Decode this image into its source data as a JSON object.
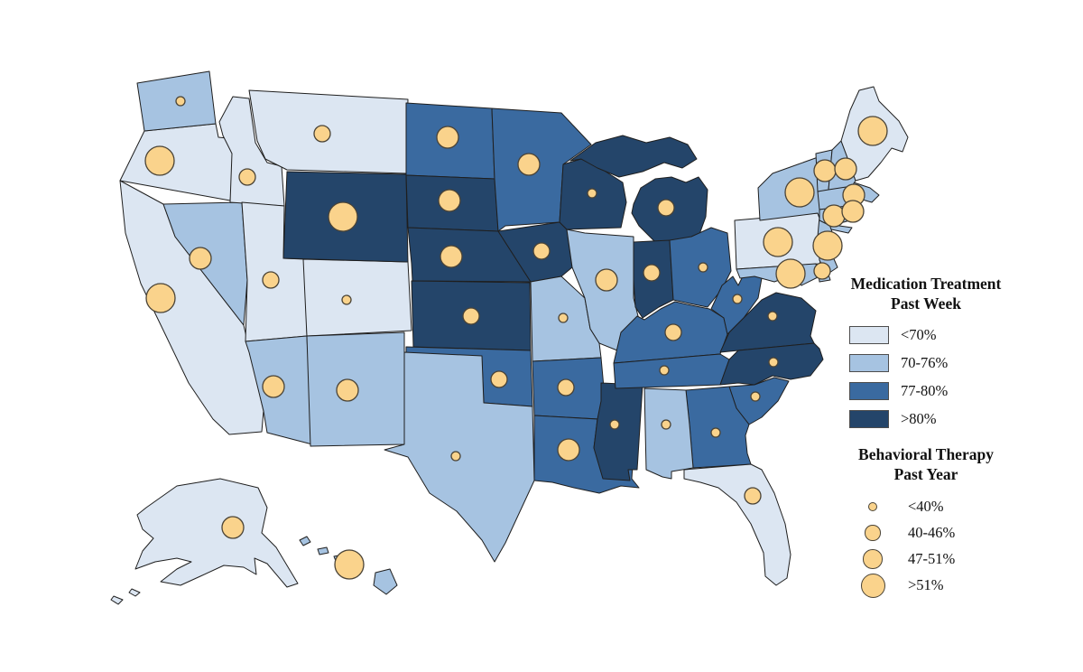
{
  "map_style": {
    "background": "#ffffff",
    "state_border": "#1f1f1f"
  },
  "circle_style": {
    "fill": "#FAD38C",
    "stroke": "#4a4336"
  },
  "fill_legend": {
    "title_line1": "Medication Treatment",
    "title_line2": "Past Week",
    "classes": [
      {
        "label": "<70%",
        "color": "#DCE6F2"
      },
      {
        "label": "70-76%",
        "color": "#A6C3E1"
      },
      {
        "label": "77-80%",
        "color": "#3A6AA0"
      },
      {
        "label": ">80%",
        "color": "#24456A"
      }
    ]
  },
  "circle_legend": {
    "title_line1": "Behavioral Therapy",
    "title_line2": "Past Year",
    "classes": [
      {
        "label": "<40%",
        "r_legend": 5,
        "r_map": 5
      },
      {
        "label": "40-46%",
        "r_legend": 8.7,
        "r_map": 9
      },
      {
        "label": "47-51%",
        "r_legend": 10.7,
        "r_map": 12
      },
      {
        "label": ">51%",
        "r_legend": 13.5,
        "r_map": 16
      }
    ]
  },
  "states": [
    {
      "id": "CA",
      "name": "California",
      "medication": "<70%",
      "therapy": ">51%"
    },
    {
      "id": "OR",
      "name": "Oregon",
      "medication": "<70%",
      "therapy": ">51%"
    },
    {
      "id": "WA",
      "name": "Washington",
      "medication": "70-76%",
      "therapy": "<40%"
    },
    {
      "id": "NV",
      "name": "Nevada",
      "medication": "70-76%",
      "therapy": "47-51%"
    },
    {
      "id": "ID",
      "name": "Idaho",
      "medication": "<70%",
      "therapy": "40-46%"
    },
    {
      "id": "MT",
      "name": "Montana",
      "medication": "<70%",
      "therapy": "40-46%"
    },
    {
      "id": "UT",
      "name": "Utah",
      "medication": "<70%",
      "therapy": "40-46%"
    },
    {
      "id": "CO",
      "name": "Colorado",
      "medication": "<70%",
      "therapy": "<40%"
    },
    {
      "id": "WY",
      "name": "Wyoming",
      "medication": ">80%",
      "therapy": ">51%"
    },
    {
      "id": "AZ",
      "name": "Arizona",
      "medication": "70-76%",
      "therapy": "47-51%"
    },
    {
      "id": "NM",
      "name": "New Mexico",
      "medication": "70-76%",
      "therapy": "47-51%"
    },
    {
      "id": "ND",
      "name": "North Dakota",
      "medication": "77-80%",
      "therapy": "47-51%"
    },
    {
      "id": "SD",
      "name": "South Dakota",
      "medication": ">80%",
      "therapy": "47-51%"
    },
    {
      "id": "NE",
      "name": "Nebraska",
      "medication": ">80%",
      "therapy": "47-51%"
    },
    {
      "id": "KS",
      "name": "Kansas",
      "medication": ">80%",
      "therapy": "40-46%"
    },
    {
      "id": "OK",
      "name": "Oklahoma",
      "medication": "77-80%",
      "therapy": "40-46%"
    },
    {
      "id": "TX",
      "name": "Texas",
      "medication": "70-76%",
      "therapy": "<40%"
    },
    {
      "id": "MN",
      "name": "Minnesota",
      "medication": "77-80%",
      "therapy": "47-51%"
    },
    {
      "id": "IA",
      "name": "Iowa",
      "medication": ">80%",
      "therapy": "40-46%"
    },
    {
      "id": "MO",
      "name": "Missouri",
      "medication": "70-76%",
      "therapy": "<40%"
    },
    {
      "id": "AR",
      "name": "Arkansas",
      "medication": "77-80%",
      "therapy": "40-46%"
    },
    {
      "id": "LA",
      "name": "Louisiana",
      "medication": "77-80%",
      "therapy": "47-51%"
    },
    {
      "id": "WI",
      "name": "Wisconsin",
      "medication": ">80%",
      "therapy": "<40%"
    },
    {
      "id": "IL",
      "name": "Illinois",
      "medication": "70-76%",
      "therapy": "47-51%"
    },
    {
      "id": "MS",
      "name": "Mississippi",
      "medication": ">80%",
      "therapy": "<40%"
    },
    {
      "id": "MI",
      "name": "Michigan",
      "medication": ">80%",
      "therapy": "40-46%"
    },
    {
      "id": "IN",
      "name": "Indiana",
      "medication": ">80%",
      "therapy": "40-46%"
    },
    {
      "id": "OH",
      "name": "Ohio",
      "medication": "77-80%",
      "therapy": "<40%"
    },
    {
      "id": "KY",
      "name": "Kentucky",
      "medication": "77-80%",
      "therapy": "40-46%"
    },
    {
      "id": "TN",
      "name": "Tennessee",
      "medication": "77-80%",
      "therapy": "<40%"
    },
    {
      "id": "WV",
      "name": "West Virginia",
      "medication": "77-80%",
      "therapy": "<40%"
    },
    {
      "id": "VA",
      "name": "Virginia",
      "medication": ">80%",
      "therapy": "<40%"
    },
    {
      "id": "NC",
      "name": "North Carolina",
      "medication": ">80%",
      "therapy": "<40%"
    },
    {
      "id": "SC",
      "name": "South Carolina",
      "medication": "77-80%",
      "therapy": "<40%"
    },
    {
      "id": "GA",
      "name": "Georgia",
      "medication": "77-80%",
      "therapy": "<40%"
    },
    {
      "id": "AL",
      "name": "Alabama",
      "medication": "70-76%",
      "therapy": "<40%"
    },
    {
      "id": "FL",
      "name": "Florida",
      "medication": "<70%",
      "therapy": "40-46%"
    },
    {
      "id": "PA",
      "name": "Pennsylvania",
      "medication": "<70%",
      "therapy": ">51%"
    },
    {
      "id": "NY",
      "name": "New York",
      "medication": "70-76%",
      "therapy": ">51%"
    },
    {
      "id": "NJ",
      "name": "New Jersey",
      "medication": "70-76%",
      "therapy": ">51%"
    },
    {
      "id": "DE",
      "name": "Delaware",
      "medication": "70-76%",
      "therapy": "40-46%"
    },
    {
      "id": "MD",
      "name": "Maryland",
      "medication": "70-76%",
      "therapy": ">51%"
    },
    {
      "id": "MA",
      "name": "Massachusetts",
      "medication": "70-76%",
      "therapy": "47-51%"
    },
    {
      "id": "VT",
      "name": "Vermont",
      "medication": "70-76%",
      "therapy": "47-51%"
    },
    {
      "id": "NH",
      "name": "New Hampshire",
      "medication": "70-76%",
      "therapy": "47-51%"
    },
    {
      "id": "CT",
      "name": "Connecticut",
      "medication": "70-76%",
      "therapy": "47-51%"
    },
    {
      "id": "RI",
      "name": "Rhode Island",
      "medication": "70-76%",
      "therapy": "47-51%"
    },
    {
      "id": "ME",
      "name": "Maine",
      "medication": "<70%",
      "therapy": ">51%"
    },
    {
      "id": "AK",
      "name": "Alaska",
      "medication": "<70%",
      "therapy": "47-51%"
    },
    {
      "id": "HI",
      "name": "Hawaii",
      "medication": "70-76%",
      "therapy": ">51%"
    }
  ]
}
